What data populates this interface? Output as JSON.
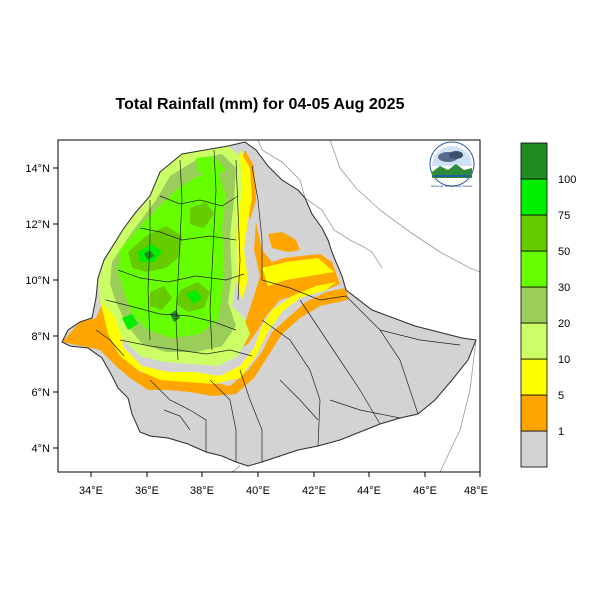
{
  "title": "Total Rainfall (mm) for 04-05 Aug 2025",
  "map": {
    "lon_range": [
      33,
      48
    ],
    "lat_range": [
      3.2,
      15.0
    ],
    "lon_ticks": [
      "34°E",
      "36°E",
      "38°E",
      "40°E",
      "42°E",
      "44°E",
      "46°E",
      "48°E"
    ],
    "lat_ticks": [
      "4°N",
      "6°N",
      "8°N",
      "10°N",
      "12°N",
      "14°N"
    ],
    "background_outside": "#ffffff",
    "country_fill": "#d3d3d3"
  },
  "legend": {
    "colors": [
      "#d3d3d3",
      "#ffa500",
      "#ffff00",
      "#ccff66",
      "#9acd5a",
      "#66ff00",
      "#66cc00",
      "#00ee00",
      "#228b22"
    ],
    "labels": [
      "1",
      "5",
      "10",
      "20",
      "30",
      "50",
      "75",
      "100"
    ]
  },
  "logo": {
    "caption": "Ethiopian Meteorology Institute"
  }
}
